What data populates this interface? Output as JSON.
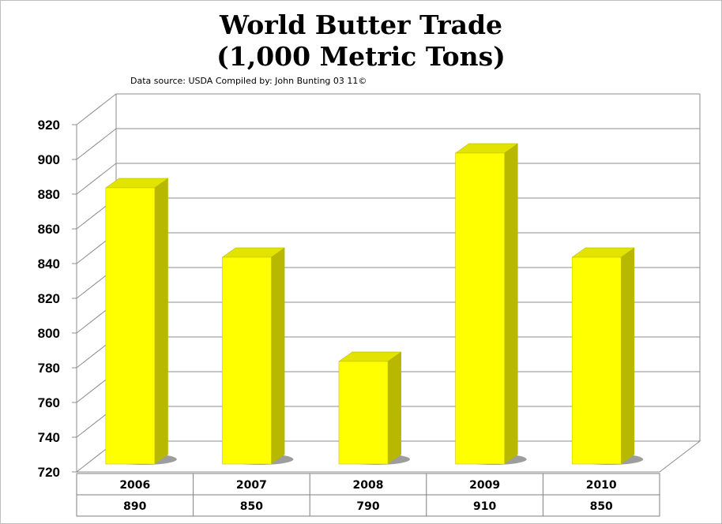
{
  "chart_data": {
    "type": "bar",
    "title_line1": "World Butter Trade",
    "title_line2": "(1,000 Metric Tons)",
    "source": "Data source: USDA  Compiled by: John Bunting 03 11©",
    "categories": [
      "2006",
      "2007",
      "2008",
      "2009",
      "2010"
    ],
    "values": [
      890,
      850,
      790,
      910,
      850
    ],
    "table_values": [
      "890",
      "850",
      "790",
      "910",
      "850"
    ],
    "y_ticks": [
      "720",
      "740",
      "760",
      "780",
      "800",
      "820",
      "840",
      "860",
      "880",
      "900",
      "920"
    ],
    "ylim": [
      720,
      920
    ],
    "grid": true,
    "three_d": true,
    "legend": "none",
    "colors": {
      "bar_front": "#ffff00",
      "bar_side": "#b8b800",
      "bar_top": "#e3e300",
      "grid": "#8c8c8c"
    }
  }
}
